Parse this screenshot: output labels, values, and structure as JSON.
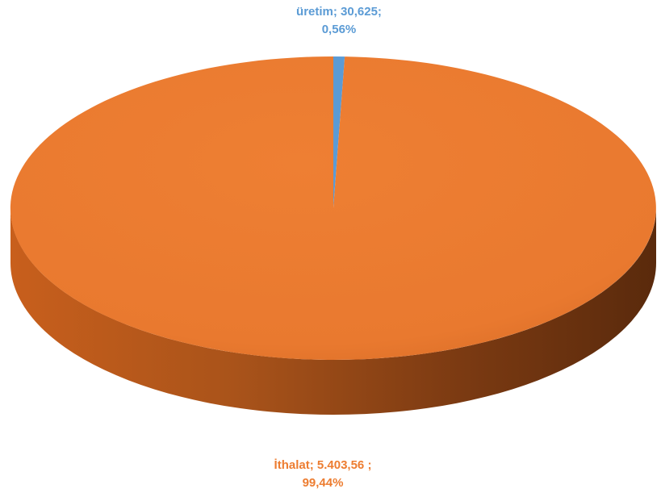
{
  "chart_data": {
    "type": "pie",
    "title": "",
    "slices": [
      {
        "name": "üretim",
        "value": 30.625,
        "percent": 0.56,
        "color": "#5b9bd5",
        "label_line1": "üretim; 30,625;",
        "label_line2": "0,56%"
      },
      {
        "name": "İthalat",
        "value": 5403.56,
        "percent": 99.44,
        "color": "#ed7d31",
        "label_line1": "İthalat;  5.403,56 ;",
        "label_line2": "99,44%"
      }
    ],
    "legend": "none"
  }
}
